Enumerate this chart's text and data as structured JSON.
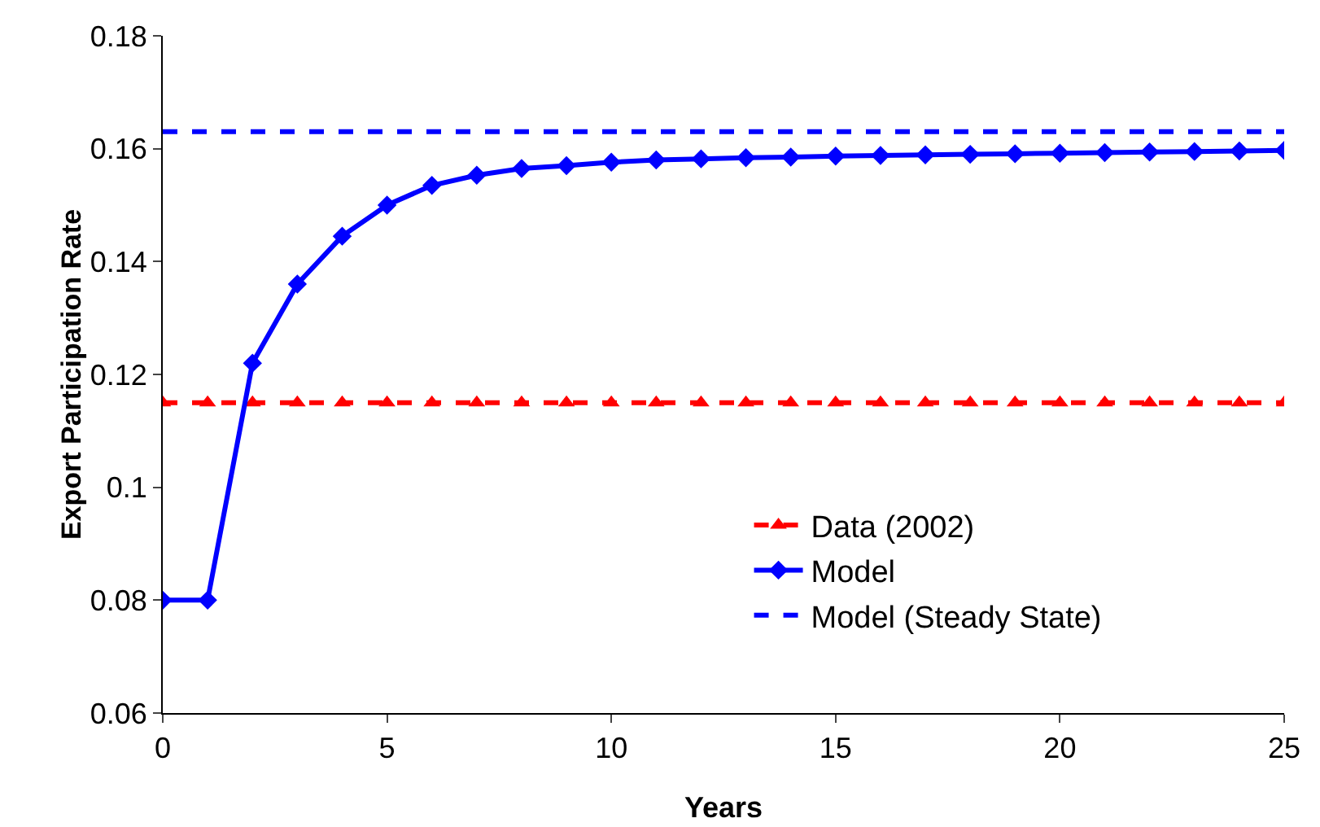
{
  "chart_data": {
    "type": "line",
    "xlabel": "Years",
    "ylabel": "Export Participation Rate",
    "x": [
      0,
      1,
      2,
      3,
      4,
      5,
      6,
      7,
      8,
      9,
      10,
      11,
      12,
      13,
      14,
      15,
      16,
      17,
      18,
      19,
      20,
      21,
      22,
      23,
      24,
      25
    ],
    "xlim": [
      0,
      25
    ],
    "xticks": [
      0,
      5,
      10,
      15,
      20,
      25
    ],
    "ylim": [
      0.06,
      0.18
    ],
    "yticks": [
      0.06,
      0.08,
      0.1,
      0.12,
      0.14,
      0.16,
      0.18
    ],
    "grid": false,
    "legend": "right",
    "series": [
      {
        "name": "Data (2002)",
        "color": "#ff0000",
        "marker": "triangle",
        "line_style": "dashed",
        "values": [
          0.115,
          0.115,
          0.115,
          0.115,
          0.115,
          0.115,
          0.115,
          0.115,
          0.115,
          0.115,
          0.115,
          0.115,
          0.115,
          0.115,
          0.115,
          0.115,
          0.115,
          0.115,
          0.115,
          0.115,
          0.115,
          0.115,
          0.115,
          0.115,
          0.115,
          0.115
        ]
      },
      {
        "name": "Model",
        "color": "#0000ff",
        "marker": "diamond",
        "line_style": "solid",
        "values": [
          0.08,
          0.08,
          0.122,
          0.136,
          0.1445,
          0.15,
          0.1535,
          0.1553,
          0.1565,
          0.157,
          0.1576,
          0.158,
          0.1582,
          0.1584,
          0.1585,
          0.1587,
          0.1588,
          0.1589,
          0.159,
          0.1591,
          0.1592,
          0.1593,
          0.1594,
          0.1595,
          0.1596,
          0.1597
        ]
      },
      {
        "name": "Model (Steady State)",
        "color": "#0000ff",
        "marker": "none",
        "line_style": "dashed",
        "x": [
          0,
          25
        ],
        "values": [
          0.163,
          0.163
        ]
      }
    ]
  }
}
